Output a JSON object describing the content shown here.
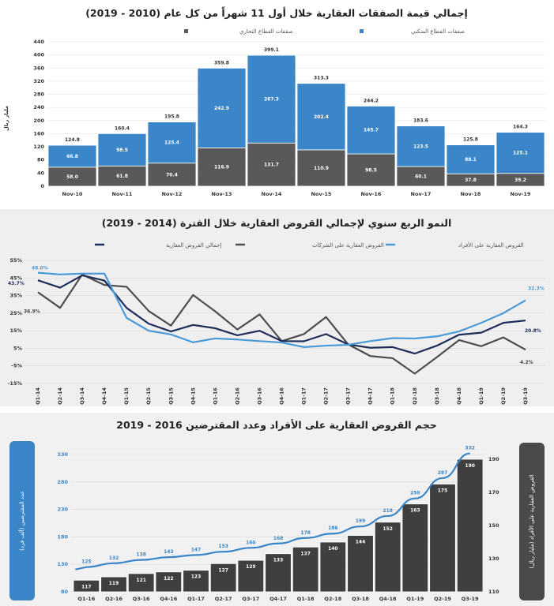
{
  "chart_data": [
    {
      "type": "bar",
      "stacked": true,
      "title": "إجمالي قيمة الصفقات العقارية خلال أول 11 شهراً من كل عام (2010 - 2019)",
      "ylabel": "مليار ريال",
      "ylim": [
        0,
        440
      ],
      "yticks": [
        0,
        40,
        80,
        120,
        160,
        200,
        240,
        280,
        320,
        360,
        400,
        440
      ],
      "legend_position": "top",
      "grid": true,
      "categories": [
        "Nov-10",
        "Nov-11",
        "Nov-12",
        "Nov-13",
        "Nov-14",
        "Nov-15",
        "Nov-16",
        "Nov-17",
        "Nov-18",
        "Nov-19"
      ],
      "series": [
        {
          "name": "صفقات القطاع التجاري",
          "color": "#595959",
          "values": [
            58.0,
            61.8,
            70.4,
            116.9,
            131.7,
            110.9,
            98.5,
            60.1,
            37.8,
            39.2
          ]
        },
        {
          "name": "صفقات القطاع السكني",
          "color": "#3a86c8",
          "values": [
            66.8,
            98.5,
            125.4,
            242.9,
            267.3,
            202.4,
            145.7,
            123.5,
            88.1,
            125.1
          ]
        }
      ],
      "totals": [
        124.8,
        160.4,
        195.8,
        359.8,
        399.1,
        313.3,
        244.2,
        183.6,
        125.8,
        164.3
      ]
    },
    {
      "type": "line",
      "title": "النمو الربع سنوي لإجمالي القروض العقارية خلال الفترة (2014 - 2019)",
      "ylim": [
        -15,
        55
      ],
      "yticks": [
        "-15%",
        "-5%",
        "5%",
        "15%",
        "25%",
        "35%",
        "45%",
        "55%"
      ],
      "ytick_values": [
        -15,
        -5,
        5,
        15,
        25,
        35,
        45,
        55
      ],
      "legend_position": "top",
      "grid": true,
      "categories": [
        "Q1-14",
        "Q2-14",
        "Q3-14",
        "Q4-14",
        "Q1-15",
        "Q2-15",
        "Q3-15",
        "Q4-15",
        "Q1-16",
        "Q2-16",
        "Q3-16",
        "Q4-16",
        "Q1-17",
        "Q2-17",
        "Q3-17",
        "Q4-17",
        "Q1-18",
        "Q2-18",
        "Q3-18",
        "Q4-18",
        "Q1-19",
        "Q2-19",
        "Q3-19"
      ],
      "series": [
        {
          "name": "إجمالي القروض العقارية",
          "color": "#1f2d5a",
          "values": [
            43.7,
            39.5,
            46.5,
            43.5,
            28,
            19,
            14.6,
            18.3,
            16.4,
            12.4,
            15,
            9.1,
            9,
            13.1,
            7.2,
            5.3,
            5.7,
            2,
            6.5,
            12.7,
            13.9,
            19.5,
            20.8
          ]
        },
        {
          "name": "القروض العقارية على الشركات",
          "color": "#4d4d4d",
          "values": [
            36.9,
            28,
            47,
            41,
            40,
            26.2,
            17.9,
            35.3,
            26,
            15.7,
            24.3,
            9.1,
            13.1,
            22.8,
            7.2,
            0.6,
            -0.6,
            -9.4,
            0,
            9.7,
            6.2,
            11.2,
            4.2
          ]
        },
        {
          "name": "القروض العقارية على الأفراد",
          "color": "#4a9ad8",
          "values": [
            48.0,
            47,
            47.5,
            47.5,
            22.3,
            15,
            12.9,
            8.4,
            10.6,
            10,
            9.1,
            8.3,
            5.7,
            6.5,
            7,
            9.1,
            10.8,
            10.6,
            11.8,
            14.6,
            19.5,
            25,
            32.3
          ]
        }
      ],
      "annotations": [
        "48.0%",
        "43.7%",
        "36.9%",
        "32.3%",
        "20.8%",
        "4.2%"
      ]
    },
    {
      "type": "bar",
      "title": "حجم القروض العقارية على الأفراد وعدد المقترضين 2016 - 2019",
      "grid": true,
      "categories": [
        "Q1-16",
        "Q2-16",
        "Q3-16",
        "Q4-16",
        "Q1-17",
        "Q2-17",
        "Q3-17",
        "Q4-17",
        "Q1-18",
        "Q2-18",
        "Q3-18",
        "Q4-18",
        "Q1-19",
        "Q2-19",
        "Q3-19"
      ],
      "left_axis": {
        "label": "عدد المقترضين (ألف فرد)",
        "ylim": [
          80,
          330
        ],
        "ticks": [
          80,
          130,
          180,
          230,
          280,
          330
        ],
        "color": "#3a86c8"
      },
      "right_axis": {
        "label": "القروض العقارية على الأفراد (مليار ريال)",
        "ylim": [
          110,
          190
        ],
        "ticks": [
          110,
          130,
          150,
          170,
          190
        ],
        "color": "#4a4a4a"
      },
      "series": [
        {
          "type": "bar",
          "axis": "right",
          "color": "#3f3f3f",
          "values": [
            117,
            119,
            121,
            122,
            123,
            127,
            129,
            133,
            137,
            140,
            144,
            152,
            163,
            175,
            190
          ]
        },
        {
          "type": "line",
          "axis": "left",
          "color": "#3a86c8",
          "values": [
            125,
            132,
            138,
            143,
            147,
            153,
            160,
            168,
            178,
            186,
            199,
            218,
            250,
            287,
            332
          ]
        }
      ]
    }
  ]
}
